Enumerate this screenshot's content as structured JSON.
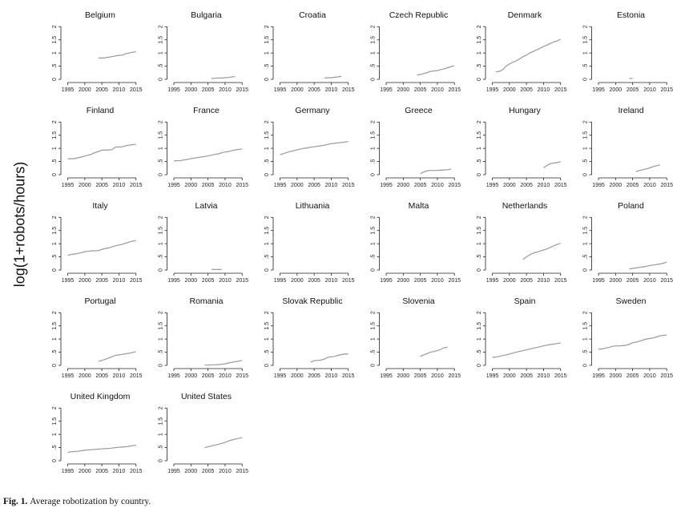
{
  "figure": {
    "ylabel": "log(1+robots/hours)",
    "caption_label": "Fig. 1.",
    "caption_text": "Average robotization by country."
  },
  "chart_data": {
    "type": "line",
    "layout": "small-multiples",
    "columns": 6,
    "xlim": [
      1993,
      2016
    ],
    "ylim": [
      0,
      2.1
    ],
    "xticks": [
      "1995",
      "2000",
      "2005",
      "2010",
      "2015"
    ],
    "yticks": [
      "0",
      ".5",
      "1",
      "1.5",
      "2"
    ],
    "line_color": "#999999",
    "panels": [
      {
        "name": "Belgium",
        "x": [
          2004,
          2005,
          2006,
          2007,
          2008,
          2009,
          2010,
          2011,
          2012,
          2013,
          2014,
          2015
        ],
        "y": [
          0.81,
          0.81,
          0.82,
          0.84,
          0.86,
          0.89,
          0.91,
          0.92,
          0.97,
          1.0,
          1.03,
          1.05
        ]
      },
      {
        "name": "Bulgaria",
        "x": [
          2006,
          2007,
          2008,
          2009,
          2010,
          2011,
          2012,
          2013
        ],
        "y": [
          0.03,
          0.04,
          0.05,
          0.05,
          0.06,
          0.07,
          0.09,
          0.1
        ]
      },
      {
        "name": "Croatia",
        "x": [
          2008,
          2009,
          2010,
          2011,
          2012,
          2013
        ],
        "y": [
          0.05,
          0.06,
          0.06,
          0.08,
          0.09,
          0.11
        ]
      },
      {
        "name": "Czech Republic",
        "x": [
          2004,
          2005,
          2006,
          2007,
          2008,
          2009,
          2010,
          2011,
          2012,
          2013,
          2014,
          2015
        ],
        "y": [
          0.16,
          0.18,
          0.22,
          0.26,
          0.3,
          0.32,
          0.33,
          0.37,
          0.4,
          0.44,
          0.48,
          0.52
        ]
      },
      {
        "name": "Denmark",
        "x": [
          1996,
          1997,
          1998,
          1999,
          2000,
          2001,
          2002,
          2003,
          2004,
          2005,
          2006,
          2007,
          2008,
          2009,
          2010,
          2011,
          2012,
          2013,
          2014,
          2015
        ],
        "y": [
          0.28,
          0.3,
          0.36,
          0.5,
          0.58,
          0.65,
          0.7,
          0.78,
          0.86,
          0.92,
          1.0,
          1.06,
          1.12,
          1.18,
          1.25,
          1.3,
          1.36,
          1.42,
          1.46,
          1.52
        ]
      },
      {
        "name": "Estonia",
        "x": [
          2004,
          2005
        ],
        "y": [
          0.03,
          0.04
        ]
      },
      {
        "name": "Finland",
        "x": [
          1995,
          1996,
          1997,
          1998,
          1999,
          2000,
          2001,
          2002,
          2003,
          2004,
          2005,
          2006,
          2007,
          2008,
          2009,
          2010,
          2011,
          2012,
          2013,
          2014,
          2015
        ],
        "y": [
          0.6,
          0.61,
          0.61,
          0.64,
          0.67,
          0.71,
          0.74,
          0.78,
          0.84,
          0.88,
          0.93,
          0.93,
          0.94,
          0.95,
          1.05,
          1.05,
          1.06,
          1.1,
          1.12,
          1.14,
          1.15
        ]
      },
      {
        "name": "France",
        "x": [
          1995,
          1996,
          1997,
          1998,
          1999,
          2000,
          2001,
          2002,
          2003,
          2004,
          2005,
          2006,
          2007,
          2008,
          2009,
          2010,
          2011,
          2012,
          2013,
          2014,
          2015
        ],
        "y": [
          0.52,
          0.53,
          0.54,
          0.56,
          0.58,
          0.61,
          0.63,
          0.65,
          0.67,
          0.69,
          0.71,
          0.74,
          0.77,
          0.79,
          0.83,
          0.86,
          0.88,
          0.91,
          0.94,
          0.96,
          0.98
        ]
      },
      {
        "name": "Germany",
        "x": [
          1995,
          1996,
          1997,
          1998,
          1999,
          2000,
          2001,
          2002,
          2003,
          2004,
          2005,
          2006,
          2007,
          2008,
          2009,
          2010,
          2011,
          2012,
          2013,
          2014,
          2015
        ],
        "y": [
          0.76,
          0.8,
          0.84,
          0.88,
          0.91,
          0.94,
          0.97,
          1.0,
          1.02,
          1.04,
          1.06,
          1.08,
          1.1,
          1.12,
          1.15,
          1.18,
          1.19,
          1.21,
          1.22,
          1.24,
          1.26
        ]
      },
      {
        "name": "Greece",
        "x": [
          2005,
          2006,
          2007,
          2008,
          2009,
          2010,
          2011,
          2012,
          2013,
          2014
        ],
        "y": [
          0.04,
          0.1,
          0.15,
          0.16,
          0.16,
          0.16,
          0.17,
          0.18,
          0.19,
          0.21
        ]
      },
      {
        "name": "Hungary",
        "x": [
          2010,
          2011,
          2012,
          2013,
          2014,
          2015
        ],
        "y": [
          0.26,
          0.35,
          0.42,
          0.44,
          0.46,
          0.5
        ]
      },
      {
        "name": "Ireland",
        "x": [
          2006,
          2007,
          2008,
          2009,
          2010,
          2011,
          2012,
          2013
        ],
        "y": [
          0.12,
          0.16,
          0.19,
          0.22,
          0.26,
          0.3,
          0.34,
          0.37
        ]
      },
      {
        "name": "Italy",
        "x": [
          1995,
          1996,
          1997,
          1998,
          1999,
          2000,
          2001,
          2002,
          2003,
          2004,
          2005,
          2006,
          2007,
          2008,
          2009,
          2010,
          2011,
          2012,
          2013,
          2014,
          2015
        ],
        "y": [
          0.56,
          0.59,
          0.61,
          0.63,
          0.66,
          0.7,
          0.71,
          0.73,
          0.73,
          0.74,
          0.78,
          0.82,
          0.84,
          0.88,
          0.92,
          0.95,
          0.98,
          1.02,
          1.06,
          1.1,
          1.12
        ]
      },
      {
        "name": "Latvia",
        "x": [
          2006,
          2009
        ],
        "y": [
          0.02,
          0.02
        ]
      },
      {
        "name": "Lithuania",
        "x": [],
        "y": []
      },
      {
        "name": "Malta",
        "x": [],
        "y": []
      },
      {
        "name": "Netherlands",
        "x": [
          2004,
          2005,
          2006,
          2007,
          2008,
          2009,
          2010,
          2011,
          2012,
          2013,
          2014,
          2015
        ],
        "y": [
          0.4,
          0.5,
          0.58,
          0.64,
          0.68,
          0.72,
          0.76,
          0.8,
          0.86,
          0.92,
          0.97,
          1.02
        ]
      },
      {
        "name": "Poland",
        "x": [
          2004,
          2005,
          2006,
          2007,
          2008,
          2009,
          2010,
          2011,
          2012,
          2013,
          2014,
          2015
        ],
        "y": [
          0.04,
          0.06,
          0.08,
          0.1,
          0.12,
          0.14,
          0.17,
          0.19,
          0.21,
          0.23,
          0.26,
          0.3
        ]
      },
      {
        "name": "Portugal",
        "x": [
          2004,
          2005,
          2006,
          2007,
          2008,
          2009,
          2010,
          2011,
          2012,
          2013,
          2014,
          2015
        ],
        "y": [
          0.15,
          0.19,
          0.23,
          0.28,
          0.33,
          0.38,
          0.4,
          0.42,
          0.44,
          0.46,
          0.49,
          0.52
        ]
      },
      {
        "name": "Romania",
        "x": [
          2004,
          2005,
          2006,
          2007,
          2008,
          2009,
          2010,
          2011,
          2012,
          2013,
          2014,
          2015
        ],
        "y": [
          0.01,
          0.01,
          0.02,
          0.02,
          0.03,
          0.04,
          0.06,
          0.09,
          0.12,
          0.14,
          0.16,
          0.19
        ]
      },
      {
        "name": "Slovak Republic",
        "x": [
          2004,
          2005,
          2006,
          2007,
          2008,
          2009,
          2010,
          2011,
          2012,
          2013,
          2014,
          2015
        ],
        "y": [
          0.12,
          0.18,
          0.19,
          0.2,
          0.24,
          0.3,
          0.33,
          0.34,
          0.38,
          0.41,
          0.43,
          0.44
        ]
      },
      {
        "name": "Slovenia",
        "x": [
          2005,
          2006,
          2007,
          2008,
          2009,
          2010,
          2011,
          2012,
          2013
        ],
        "y": [
          0.34,
          0.4,
          0.45,
          0.5,
          0.53,
          0.56,
          0.61,
          0.67,
          0.69
        ]
      },
      {
        "name": "Spain",
        "x": [
          1995,
          1996,
          1997,
          1998,
          1999,
          2000,
          2001,
          2002,
          2003,
          2004,
          2005,
          2006,
          2007,
          2008,
          2009,
          2010,
          2011,
          2012,
          2013,
          2014,
          2015
        ],
        "y": [
          0.3,
          0.32,
          0.34,
          0.37,
          0.4,
          0.43,
          0.47,
          0.5,
          0.53,
          0.56,
          0.59,
          0.62,
          0.65,
          0.68,
          0.71,
          0.74,
          0.77,
          0.79,
          0.81,
          0.83,
          0.85
        ]
      },
      {
        "name": "Sweden",
        "x": [
          1995,
          1996,
          1997,
          1998,
          1999,
          2000,
          2001,
          2002,
          2003,
          2004,
          2005,
          2006,
          2007,
          2008,
          2009,
          2010,
          2011,
          2012,
          2013,
          2014,
          2015
        ],
        "y": [
          0.62,
          0.62,
          0.65,
          0.68,
          0.72,
          0.74,
          0.74,
          0.75,
          0.76,
          0.8,
          0.86,
          0.88,
          0.92,
          0.96,
          1.0,
          1.02,
          1.04,
          1.08,
          1.12,
          1.14,
          1.15
        ]
      },
      {
        "name": "United Kingdom",
        "x": [
          1995,
          1996,
          1997,
          1998,
          1999,
          2000,
          2001,
          2002,
          2003,
          2004,
          2005,
          2006,
          2007,
          2008,
          2009,
          2010,
          2011,
          2012,
          2013,
          2014,
          2015
        ],
        "y": [
          0.32,
          0.34,
          0.35,
          0.36,
          0.38,
          0.4,
          0.41,
          0.42,
          0.43,
          0.44,
          0.45,
          0.46,
          0.47,
          0.48,
          0.5,
          0.51,
          0.52,
          0.53,
          0.55,
          0.57,
          0.59
        ]
      },
      {
        "name": "United States",
        "x": [
          2004,
          2005,
          2006,
          2007,
          2008,
          2009,
          2010,
          2011,
          2012,
          2013,
          2014,
          2015
        ],
        "y": [
          0.5,
          0.53,
          0.56,
          0.59,
          0.62,
          0.66,
          0.7,
          0.75,
          0.79,
          0.82,
          0.85,
          0.88
        ]
      }
    ]
  }
}
